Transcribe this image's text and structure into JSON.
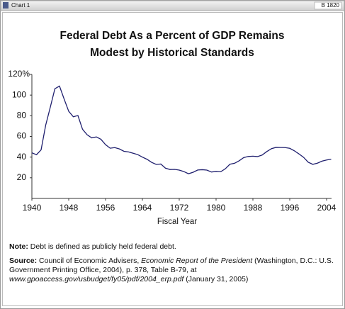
{
  "header": {
    "title": "Chart 1",
    "code": "B 1820"
  },
  "chart_data": {
    "type": "line",
    "title": [
      "Federal Debt As a Percent of GDP Remains",
      "Modest by Historical Standards"
    ],
    "x_label": "Fiscal Year",
    "x": [
      1940,
      1941,
      1942,
      1943,
      1944,
      1945,
      1946,
      1947,
      1948,
      1949,
      1950,
      1951,
      1952,
      1953,
      1954,
      1955,
      1956,
      1957,
      1958,
      1959,
      1960,
      1961,
      1962,
      1963,
      1964,
      1965,
      1966,
      1967,
      1968,
      1969,
      1970,
      1971,
      1972,
      1973,
      1974,
      1975,
      1976,
      1977,
      1978,
      1979,
      1980,
      1981,
      1982,
      1983,
      1984,
      1985,
      1986,
      1987,
      1988,
      1989,
      1990,
      1991,
      1992,
      1993,
      1994,
      1995,
      1996,
      1997,
      1998,
      1999,
      2000,
      2001,
      2002,
      2003,
      2004,
      2005
    ],
    "values": [
      44.2,
      42.3,
      47.0,
      70.9,
      88.3,
      106.2,
      108.7,
      96.2,
      84.3,
      79.0,
      80.2,
      66.9,
      61.6,
      58.6,
      59.5,
      57.2,
      52.0,
      48.6,
      49.2,
      47.9,
      45.6,
      45.0,
      43.7,
      42.4,
      40.0,
      37.9,
      34.9,
      32.9,
      33.3,
      29.3,
      28.0,
      28.1,
      27.4,
      26.0,
      23.9,
      25.3,
      27.5,
      27.8,
      27.4,
      25.6,
      26.1,
      25.8,
      28.7,
      33.1,
      34.0,
      36.4,
      39.5,
      40.6,
      40.9,
      40.5,
      42.0,
      45.3,
      48.1,
      49.4,
      49.3,
      49.2,
      48.5,
      46.1,
      43.1,
      39.8,
      35.1,
      33.0,
      34.1,
      36.1,
      37.2,
      38.0
    ],
    "color": "#1f1f6e",
    "xlim": [
      1940,
      2005
    ],
    "xticks": [
      1940,
      1948,
      1956,
      1964,
      1972,
      1980,
      1988,
      1996,
      2004
    ],
    "ylim": [
      0,
      120
    ],
    "yticks": [
      20,
      40,
      60,
      80,
      100,
      {
        "value": 120,
        "label": "120%"
      }
    ]
  },
  "note": {
    "label": "Note:",
    "text": "Debt is defined as publicly held federal debt."
  },
  "source": {
    "label": "Source:",
    "parts": [
      {
        "text": "Council of Economic Advisers, "
      },
      {
        "text": "Economic Report of the President",
        "italic": true
      },
      {
        "text": " (Washington, D.C.: U.S. Government Printing Office, 2004), p. 378, Table B-79, at "
      },
      {
        "text": "www.gpoaccess.gov/usbudget/fy05/pdf/2004_erp.pdf",
        "italic": true
      },
      {
        "text": " (January 31, 2005)"
      }
    ]
  }
}
